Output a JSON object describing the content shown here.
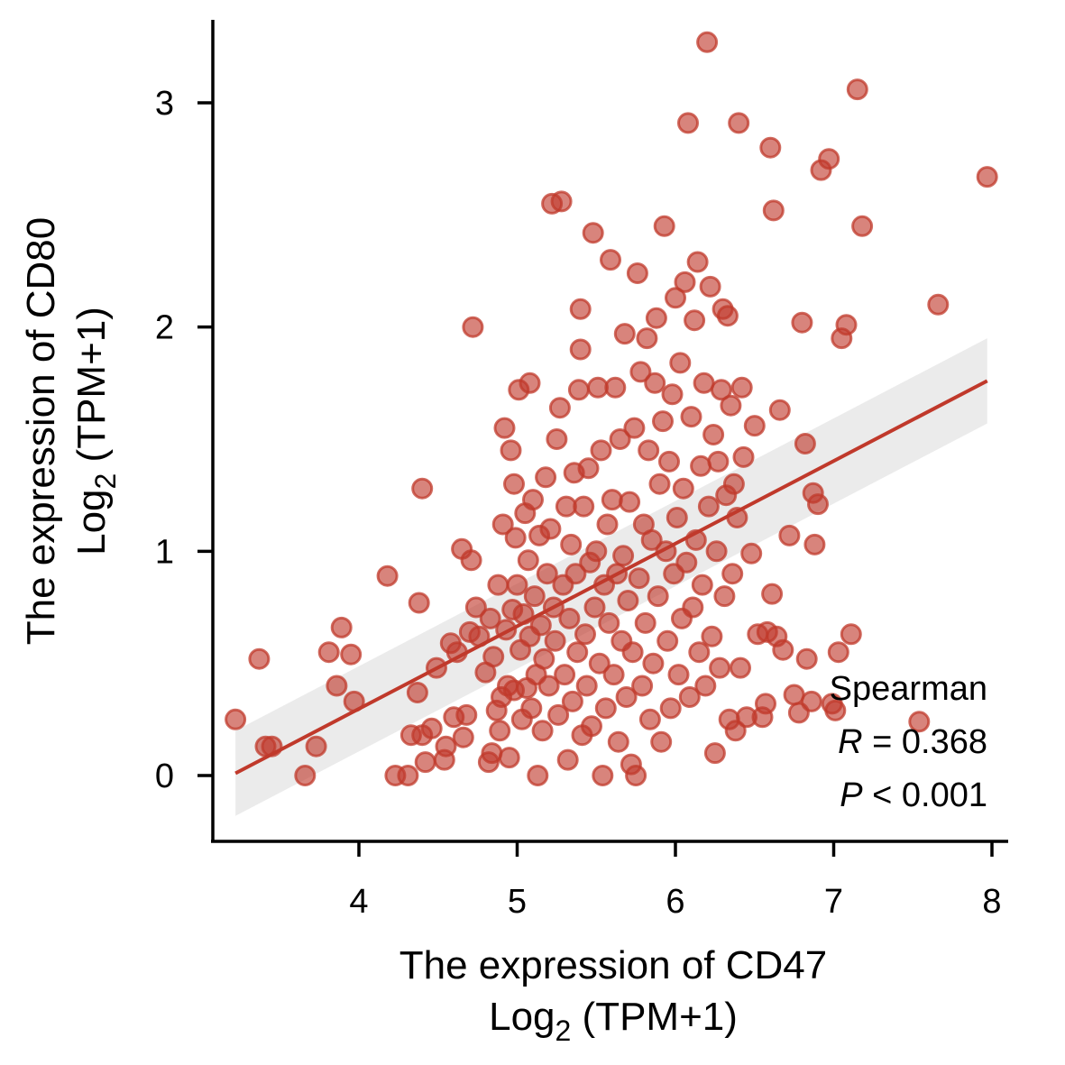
{
  "chart_data": {
    "type": "scatter",
    "title": "",
    "xlabel_line1": "The expression of CD47",
    "xlabel_line2_base": "Log",
    "xlabel_line2_sub": "2",
    "xlabel_line2_rest": " (TPM+1)",
    "ylabel_line1": "The expression of CD80",
    "ylabel_line2_base": "Log",
    "ylabel_line2_sub": "2",
    "ylabel_line2_rest": " (TPM+1)",
    "xlim": [
      3.1,
      8.1
    ],
    "ylim": [
      -0.28,
      3.38
    ],
    "x_ticks": [
      "4",
      "5",
      "6",
      "7",
      "8"
    ],
    "y_ticks": [
      "0",
      "1",
      "2",
      "3"
    ],
    "colors": {
      "points": "#c0392b",
      "line": "#c0392b",
      "band": "#e8e8e8"
    },
    "regression": {
      "x": [
        3.22,
        7.97
      ],
      "y": [
        0.01,
        1.76
      ],
      "ci_low": [
        -0.18,
        1.57
      ],
      "ci_high": [
        0.2,
        1.95
      ]
    },
    "stats": {
      "method": "Spearman",
      "r_label": "R",
      "r_value": " = 0.368",
      "p_label": "P",
      "p_value": " < 0.001"
    },
    "points": [
      [
        3.22,
        0.25
      ],
      [
        3.37,
        0.52
      ],
      [
        3.41,
        0.13
      ],
      [
        3.45,
        0.13
      ],
      [
        3.66,
        0.0
      ],
      [
        3.73,
        0.13
      ],
      [
        3.81,
        0.55
      ],
      [
        3.86,
        0.4
      ],
      [
        3.89,
        0.66
      ],
      [
        3.95,
        0.54
      ],
      [
        3.97,
        0.33
      ],
      [
        4.18,
        0.89
      ],
      [
        4.23,
        0.0
      ],
      [
        4.31,
        0.0
      ],
      [
        4.33,
        0.18
      ],
      [
        4.37,
        0.37
      ],
      [
        4.38,
        0.77
      ],
      [
        4.4,
        1.28
      ],
      [
        4.4,
        0.18
      ],
      [
        4.42,
        0.06
      ],
      [
        4.46,
        0.21
      ],
      [
        4.49,
        0.48
      ],
      [
        4.54,
        0.07
      ],
      [
        4.55,
        0.13
      ],
      [
        4.58,
        0.59
      ],
      [
        4.6,
        0.26
      ],
      [
        4.62,
        0.55
      ],
      [
        4.65,
        1.01
      ],
      [
        4.66,
        0.17
      ],
      [
        4.68,
        0.27
      ],
      [
        4.7,
        0.64
      ],
      [
        4.71,
        0.96
      ],
      [
        4.72,
        2.0
      ],
      [
        4.74,
        0.75
      ],
      [
        4.76,
        0.62
      ],
      [
        4.8,
        0.46
      ],
      [
        4.82,
        0.06
      ],
      [
        4.83,
        0.7
      ],
      [
        4.84,
        0.1
      ],
      [
        4.85,
        0.53
      ],
      [
        4.87,
        0.29
      ],
      [
        4.88,
        0.85
      ],
      [
        4.89,
        0.2
      ],
      [
        4.9,
        0.35
      ],
      [
        4.91,
        1.12
      ],
      [
        4.92,
        1.55
      ],
      [
        4.93,
        0.65
      ],
      [
        4.94,
        0.4
      ],
      [
        4.95,
        0.08
      ],
      [
        4.96,
        1.45
      ],
      [
        4.97,
        0.74
      ],
      [
        4.98,
        1.3
      ],
      [
        4.98,
        0.38
      ],
      [
        4.99,
        1.06
      ],
      [
        5.0,
        0.85
      ],
      [
        5.01,
        1.72
      ],
      [
        5.02,
        0.56
      ],
      [
        5.03,
        0.25
      ],
      [
        5.04,
        0.72
      ],
      [
        5.05,
        1.17
      ],
      [
        5.06,
        0.39
      ],
      [
        5.07,
        0.96
      ],
      [
        5.08,
        1.75
      ],
      [
        5.08,
        0.62
      ],
      [
        5.09,
        0.3
      ],
      [
        5.1,
        1.23
      ],
      [
        5.11,
        0.8
      ],
      [
        5.12,
        0.45
      ],
      [
        5.13,
        0.0
      ],
      [
        5.14,
        1.07
      ],
      [
        5.15,
        0.67
      ],
      [
        5.16,
        0.2
      ],
      [
        5.17,
        0.52
      ],
      [
        5.18,
        1.33
      ],
      [
        5.19,
        0.9
      ],
      [
        5.2,
        0.4
      ],
      [
        5.21,
        1.1
      ],
      [
        5.22,
        2.55
      ],
      [
        5.23,
        0.75
      ],
      [
        5.24,
        0.6
      ],
      [
        5.25,
        1.5
      ],
      [
        5.26,
        0.27
      ],
      [
        5.27,
        1.64
      ],
      [
        5.28,
        2.56
      ],
      [
        5.29,
        0.85
      ],
      [
        5.3,
        0.45
      ],
      [
        5.31,
        1.2
      ],
      [
        5.32,
        0.07
      ],
      [
        5.33,
        0.7
      ],
      [
        5.34,
        1.03
      ],
      [
        5.35,
        0.33
      ],
      [
        5.36,
        1.35
      ],
      [
        5.37,
        0.9
      ],
      [
        5.38,
        0.55
      ],
      [
        5.39,
        1.72
      ],
      [
        5.4,
        1.9
      ],
      [
        5.4,
        2.08
      ],
      [
        5.41,
        0.18
      ],
      [
        5.42,
        1.2
      ],
      [
        5.43,
        0.63
      ],
      [
        5.44,
        0.4
      ],
      [
        5.45,
        1.37
      ],
      [
        5.46,
        0.95
      ],
      [
        5.47,
        0.22
      ],
      [
        5.48,
        2.42
      ],
      [
        5.49,
        0.75
      ],
      [
        5.5,
        1.0
      ],
      [
        5.51,
        1.73
      ],
      [
        5.52,
        0.5
      ],
      [
        5.53,
        1.45
      ],
      [
        5.54,
        0.0
      ],
      [
        5.55,
        0.85
      ],
      [
        5.56,
        0.3
      ],
      [
        5.57,
        1.12
      ],
      [
        5.58,
        0.68
      ],
      [
        5.59,
        2.3
      ],
      [
        5.6,
        1.23
      ],
      [
        5.61,
        0.45
      ],
      [
        5.62,
        1.73
      ],
      [
        5.63,
        0.9
      ],
      [
        5.64,
        0.15
      ],
      [
        5.65,
        1.5
      ],
      [
        5.66,
        0.6
      ],
      [
        5.67,
        0.98
      ],
      [
        5.68,
        1.97
      ],
      [
        5.69,
        0.35
      ],
      [
        5.7,
        0.78
      ],
      [
        5.71,
        1.22
      ],
      [
        5.72,
        0.05
      ],
      [
        5.73,
        0.55
      ],
      [
        5.74,
        1.55
      ],
      [
        5.75,
        0.0
      ],
      [
        5.76,
        2.24
      ],
      [
        5.77,
        0.88
      ],
      [
        5.78,
        1.8
      ],
      [
        5.79,
        0.4
      ],
      [
        5.8,
        1.12
      ],
      [
        5.81,
        0.68
      ],
      [
        5.82,
        1.95
      ],
      [
        5.83,
        1.45
      ],
      [
        5.84,
        0.25
      ],
      [
        5.85,
        1.05
      ],
      [
        5.86,
        0.5
      ],
      [
        5.87,
        1.75
      ],
      [
        5.88,
        2.04
      ],
      [
        5.89,
        0.8
      ],
      [
        5.9,
        1.3
      ],
      [
        5.91,
        0.15
      ],
      [
        5.92,
        1.58
      ],
      [
        5.93,
        2.45
      ],
      [
        5.94,
        1.0
      ],
      [
        5.95,
        0.6
      ],
      [
        5.96,
        1.4
      ],
      [
        5.97,
        0.3
      ],
      [
        5.98,
        1.7
      ],
      [
        5.99,
        0.9
      ],
      [
        6.0,
        2.13
      ],
      [
        6.01,
        1.15
      ],
      [
        6.02,
        0.45
      ],
      [
        6.03,
        1.84
      ],
      [
        6.04,
        0.7
      ],
      [
        6.05,
        1.28
      ],
      [
        6.06,
        2.2
      ],
      [
        6.07,
        0.95
      ],
      [
        6.08,
        2.91
      ],
      [
        6.09,
        0.35
      ],
      [
        6.1,
        1.6
      ],
      [
        6.11,
        0.75
      ],
      [
        6.12,
        2.03
      ],
      [
        6.13,
        1.05
      ],
      [
        6.14,
        2.29
      ],
      [
        6.15,
        0.55
      ],
      [
        6.16,
        1.38
      ],
      [
        6.17,
        0.85
      ],
      [
        6.18,
        1.75
      ],
      [
        6.19,
        0.4
      ],
      [
        6.2,
        3.27
      ],
      [
        6.21,
        1.2
      ],
      [
        6.22,
        2.18
      ],
      [
        6.23,
        0.62
      ],
      [
        6.24,
        1.52
      ],
      [
        6.25,
        0.1
      ],
      [
        6.26,
        1.0
      ],
      [
        6.27,
        1.4
      ],
      [
        6.28,
        0.48
      ],
      [
        6.29,
        1.72
      ],
      [
        6.3,
        2.08
      ],
      [
        6.31,
        0.8
      ],
      [
        6.32,
        1.25
      ],
      [
        6.33,
        2.05
      ],
      [
        6.34,
        0.25
      ],
      [
        6.35,
        1.65
      ],
      [
        6.36,
        0.9
      ],
      [
        6.37,
        1.3
      ],
      [
        6.38,
        0.2
      ],
      [
        6.39,
        1.15
      ],
      [
        6.4,
        2.91
      ],
      [
        6.41,
        0.48
      ],
      [
        6.42,
        1.73
      ],
      [
        6.43,
        1.42
      ],
      [
        6.45,
        0.26
      ],
      [
        6.48,
        0.99
      ],
      [
        6.5,
        1.56
      ],
      [
        6.52,
        0.63
      ],
      [
        6.55,
        0.26
      ],
      [
        6.57,
        0.32
      ],
      [
        6.58,
        0.64
      ],
      [
        6.6,
        2.8
      ],
      [
        6.61,
        0.81
      ],
      [
        6.62,
        2.52
      ],
      [
        6.64,
        0.62
      ],
      [
        6.66,
        1.63
      ],
      [
        6.68,
        0.56
      ],
      [
        6.72,
        1.07
      ],
      [
        6.75,
        0.36
      ],
      [
        6.78,
        0.28
      ],
      [
        6.8,
        2.02
      ],
      [
        6.82,
        1.48
      ],
      [
        6.83,
        0.52
      ],
      [
        6.86,
        0.33
      ],
      [
        6.87,
        1.26
      ],
      [
        6.88,
        1.03
      ],
      [
        6.9,
        1.21
      ],
      [
        6.92,
        2.7
      ],
      [
        6.97,
        2.75
      ],
      [
        6.99,
        0.32
      ],
      [
        7.01,
        0.29
      ],
      [
        7.03,
        0.55
      ],
      [
        7.05,
        1.95
      ],
      [
        7.08,
        2.01
      ],
      [
        7.11,
        0.63
      ],
      [
        7.15,
        3.06
      ],
      [
        7.18,
        2.45
      ],
      [
        7.54,
        0.24
      ],
      [
        7.66,
        2.1
      ],
      [
        7.97,
        2.67
      ]
    ]
  }
}
